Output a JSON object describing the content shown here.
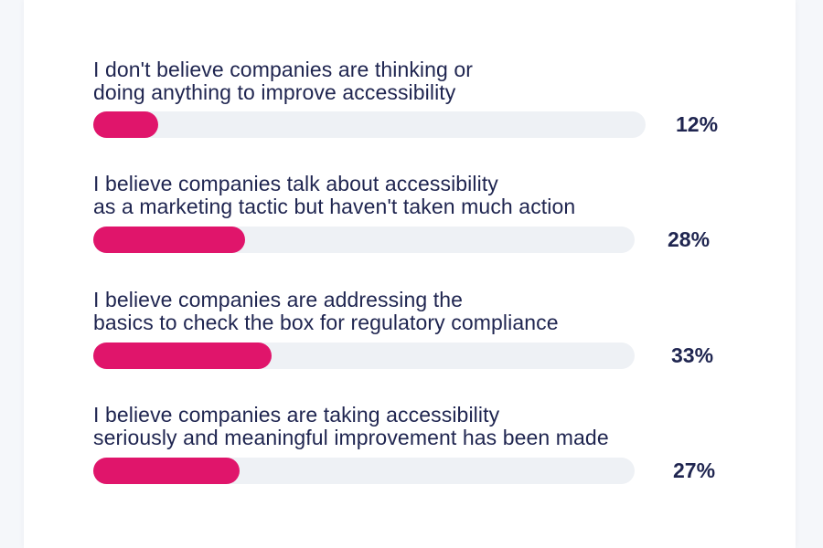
{
  "colors": {
    "bar_fill": "#e0156b",
    "bar_track": "#eef1f5",
    "text": "#1f2550"
  },
  "chart_data": {
    "type": "bar",
    "orientation": "horizontal",
    "title": "",
    "xlabel": "",
    "ylabel": "",
    "xlim": [
      0,
      100
    ],
    "grid": false,
    "legend": "none",
    "categories": [
      "I don't believe companies are thinking or doing anything to improve accessibility",
      "I believe companies talk about accessibility as a marketing tactic but haven't taken much action",
      "I believe companies are addressing the basics to check the box for regulatory compliance",
      "I believe companies are taking accessibility seriously and meaningful improvement has been made"
    ],
    "label_lines": [
      [
        "I don't believe companies are thinking or",
        "doing anything to improve accessibility"
      ],
      [
        "I believe companies talk about accessibility",
        "as a marketing tactic but haven't taken much action"
      ],
      [
        "I believe companies are addressing the",
        "basics to check the box for regulatory compliance"
      ],
      [
        "I believe companies are taking accessibility",
        "seriously and meaningful improvement has been made"
      ]
    ],
    "values": [
      12,
      28,
      33,
      27
    ],
    "value_labels": [
      "12%",
      "28%",
      "33%",
      "27%"
    ]
  }
}
